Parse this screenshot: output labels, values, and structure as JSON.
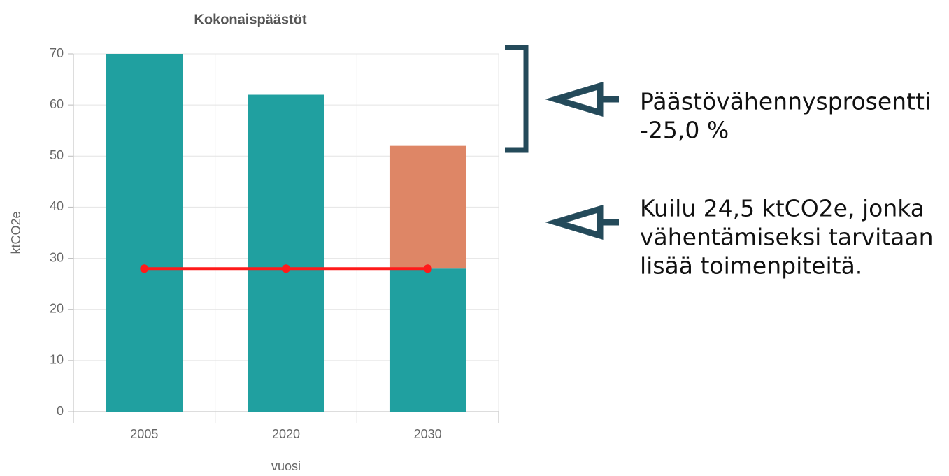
{
  "chart_data": {
    "type": "bar",
    "title": "Kokonaispäästöt",
    "categories": [
      "2005",
      "2020",
      "2030"
    ],
    "stacked": true,
    "series": [
      {
        "color": "#20a0a0",
        "values": [
          70,
          62,
          28
        ]
      },
      {
        "color": "#de8666",
        "values": [
          null,
          null,
          24
        ]
      }
    ],
    "line": {
      "color": "#ff1a1a",
      "values": [
        28,
        28,
        28
      ]
    },
    "ylabel": "ktCO2e",
    "xlabel": "vuosi",
    "ylim": [
      0,
      70
    ],
    "yticks": [
      0,
      10,
      20,
      30,
      40,
      50,
      60,
      70
    ],
    "grid": true,
    "annotations": [
      {
        "lines": [
          "Päästövähennysprosentti",
          "-25,0 %"
        ]
      },
      {
        "lines": [
          "Kuilu 24,5 ktCO2e, jonka",
          "vähentämiseksi tarvitaan",
          "lisää toimenpiteitä."
        ]
      }
    ]
  }
}
